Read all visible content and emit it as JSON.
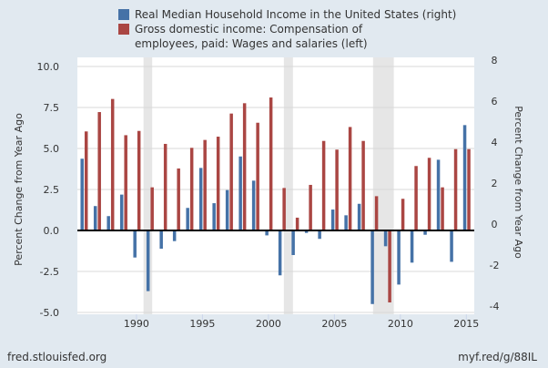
{
  "chart_data": {
    "type": "bar",
    "x": [
      1986,
      1987,
      1988,
      1989,
      1990,
      1991,
      1992,
      1993,
      1994,
      1995,
      1996,
      1997,
      1998,
      1999,
      2000,
      2001,
      2002,
      2003,
      2004,
      2005,
      2006,
      2007,
      2008,
      2009,
      2010,
      2011,
      2012,
      2013,
      2014,
      2015
    ],
    "series": [
      {
        "name": "Real Median Household Income in the United States (right)",
        "axis": "right",
        "color": "#4572a7",
        "values": [
          3.5,
          1.19,
          0.7,
          1.75,
          -1.32,
          -2.96,
          -0.89,
          -0.52,
          1.1,
          3.05,
          1.33,
          1.97,
          3.61,
          2.43,
          -0.24,
          -2.19,
          -1.2,
          -0.12,
          -0.41,
          1.02,
          0.74,
          1.3,
          -3.59,
          -0.77,
          -2.64,
          -1.57,
          -0.21,
          3.45,
          -1.53,
          5.14
        ]
      },
      {
        "name": "Gross domestic income: Compensation of employees, paid: Wages and salaries (left)",
        "axis": "left",
        "color": "#aa4643",
        "values": [
          6.04,
          7.22,
          8.02,
          5.81,
          6.07,
          2.63,
          5.28,
          3.78,
          5.04,
          5.52,
          5.72,
          7.13,
          7.76,
          6.57,
          8.11,
          2.59,
          0.78,
          2.78,
          5.46,
          4.93,
          6.31,
          5.46,
          2.09,
          -4.39,
          1.93,
          3.93,
          4.43,
          2.63,
          4.96,
          4.96
        ]
      }
    ],
    "recessions": [
      [
        1990.53,
        1991.19
      ],
      [
        2001.17,
        2001.86
      ],
      [
        2007.93,
        2009.5
      ]
    ],
    "ylabel_left": "Percent Change from Year Ago",
    "ylabel_right": "Percent Change from Year Ago",
    "ylim_left": [
      -5,
      10
    ],
    "ylim_right": [
      -4,
      8
    ],
    "left_ticks": [
      "10.0",
      "7.5",
      "5.0",
      "2.5",
      "0.0",
      "-2.5",
      "-5.0"
    ],
    "left_tick_values": [
      10,
      7.5,
      5,
      2.5,
      0,
      -2.5,
      -5
    ],
    "right_ticks": [
      "8",
      "6",
      "4",
      "2",
      "0",
      "-2",
      "-4"
    ],
    "right_tick_values": [
      8,
      6,
      4,
      2,
      0,
      -2,
      -4
    ],
    "x_ticks": [
      "1990",
      "1995",
      "2000",
      "2005",
      "2010",
      "2015"
    ],
    "x_tick_values": [
      1990,
      1995,
      2000,
      2005,
      2010,
      2015
    ],
    "xlim": [
      1985.52,
      2015.6
    ],
    "grid": true,
    "legend_position": "top"
  },
  "footer": {
    "source": "fred.stlouisfed.org",
    "link": "myf.red/g/88IL"
  }
}
